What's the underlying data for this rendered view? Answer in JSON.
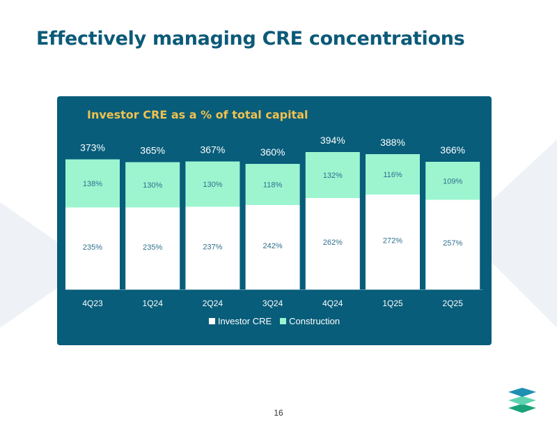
{
  "page": {
    "title": "Effectively managing CRE concentrations",
    "page_number": "16"
  },
  "colors": {
    "title": "#0c5a78",
    "panel_bg": "#075d7a",
    "panel_title": "#f2c14e",
    "investor": "#ffffff",
    "construction": "#9df5d0",
    "segment_label": "#2f6f8c",
    "total_label": "#ffffff"
  },
  "chart_data": {
    "type": "bar",
    "stacked": true,
    "title": "Investor CRE as a % of total capital",
    "categories": [
      "4Q23",
      "1Q24",
      "2Q24",
      "3Q24",
      "4Q24",
      "1Q25",
      "2Q25"
    ],
    "series": [
      {
        "name": "Investor CRE",
        "values": [
          235,
          235,
          237,
          242,
          262,
          272,
          257
        ],
        "labels": [
          "235%",
          "235%",
          "237%",
          "242%",
          "262%",
          "272%",
          "257%"
        ]
      },
      {
        "name": "Construction",
        "values": [
          138,
          130,
          130,
          118,
          132,
          116,
          109
        ],
        "labels": [
          "138%",
          "130%",
          "130%",
          "118%",
          "132%",
          "116%",
          "109%"
        ]
      }
    ],
    "totals": [
      "373%",
      "365%",
      "367%",
      "360%",
      "394%",
      "388%",
      "366%"
    ],
    "ylim": [
      0,
      400
    ],
    "xlabel": "",
    "ylabel": "",
    "legend": "bottom-center",
    "grid": false
  }
}
